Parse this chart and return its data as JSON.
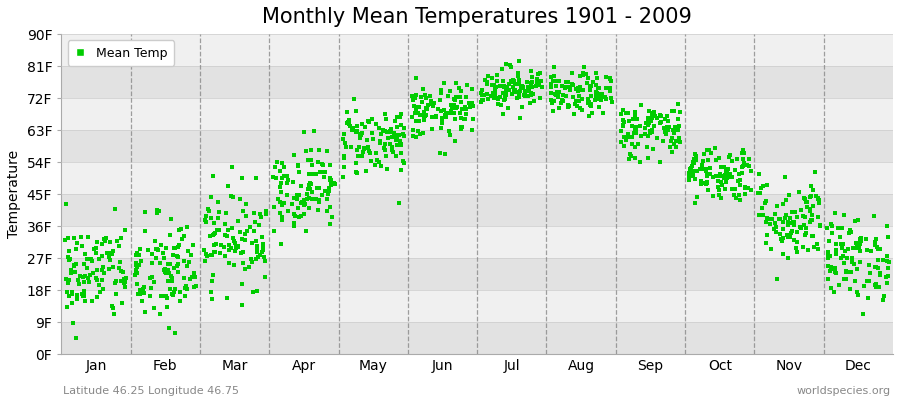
{
  "title": "Monthly Mean Temperatures 1901 - 2009",
  "ylabel": "Temperature",
  "xlabel": "",
  "subtitle_left": "Latitude 46.25 Longitude 46.75",
  "subtitle_right": "worldspecies.org",
  "months": [
    "Jan",
    "Feb",
    "Mar",
    "Apr",
    "May",
    "Jun",
    "Jul",
    "Aug",
    "Sep",
    "Oct",
    "Nov",
    "Dec"
  ],
  "yticks": [
    0,
    9,
    18,
    27,
    36,
    45,
    54,
    63,
    72,
    81,
    90
  ],
  "ytick_labels": [
    "0F",
    "9F",
    "18F",
    "27F",
    "36F",
    "45F",
    "54F",
    "63F",
    "72F",
    "81F",
    "90F"
  ],
  "ylim": [
    0,
    90
  ],
  "dot_color": "#00cc00",
  "dot_size": 6,
  "legend_label": "Mean Temp",
  "background_color": "#ffffff",
  "band_color_light": "#f0f0f0",
  "band_color_dark": "#e2e2e2",
  "title_fontsize": 15,
  "axis_fontsize": 10,
  "monthly_mean_temps": {
    "Jan": {
      "mean": 23,
      "std": 7
    },
    "Feb": {
      "mean": 23,
      "std": 8
    },
    "Mar": {
      "mean": 33,
      "std": 7
    },
    "Apr": {
      "mean": 47,
      "std": 6
    },
    "May": {
      "mean": 60,
      "std": 5
    },
    "Jun": {
      "mean": 68,
      "std": 4
    },
    "Jul": {
      "mean": 75,
      "std": 3
    },
    "Aug": {
      "mean": 73,
      "std": 3
    },
    "Sep": {
      "mean": 63,
      "std": 4
    },
    "Oct": {
      "mean": 51,
      "std": 4
    },
    "Nov": {
      "mean": 38,
      "std": 6
    },
    "Dec": {
      "mean": 27,
      "std": 6
    }
  },
  "num_years": 109,
  "seed": 42
}
